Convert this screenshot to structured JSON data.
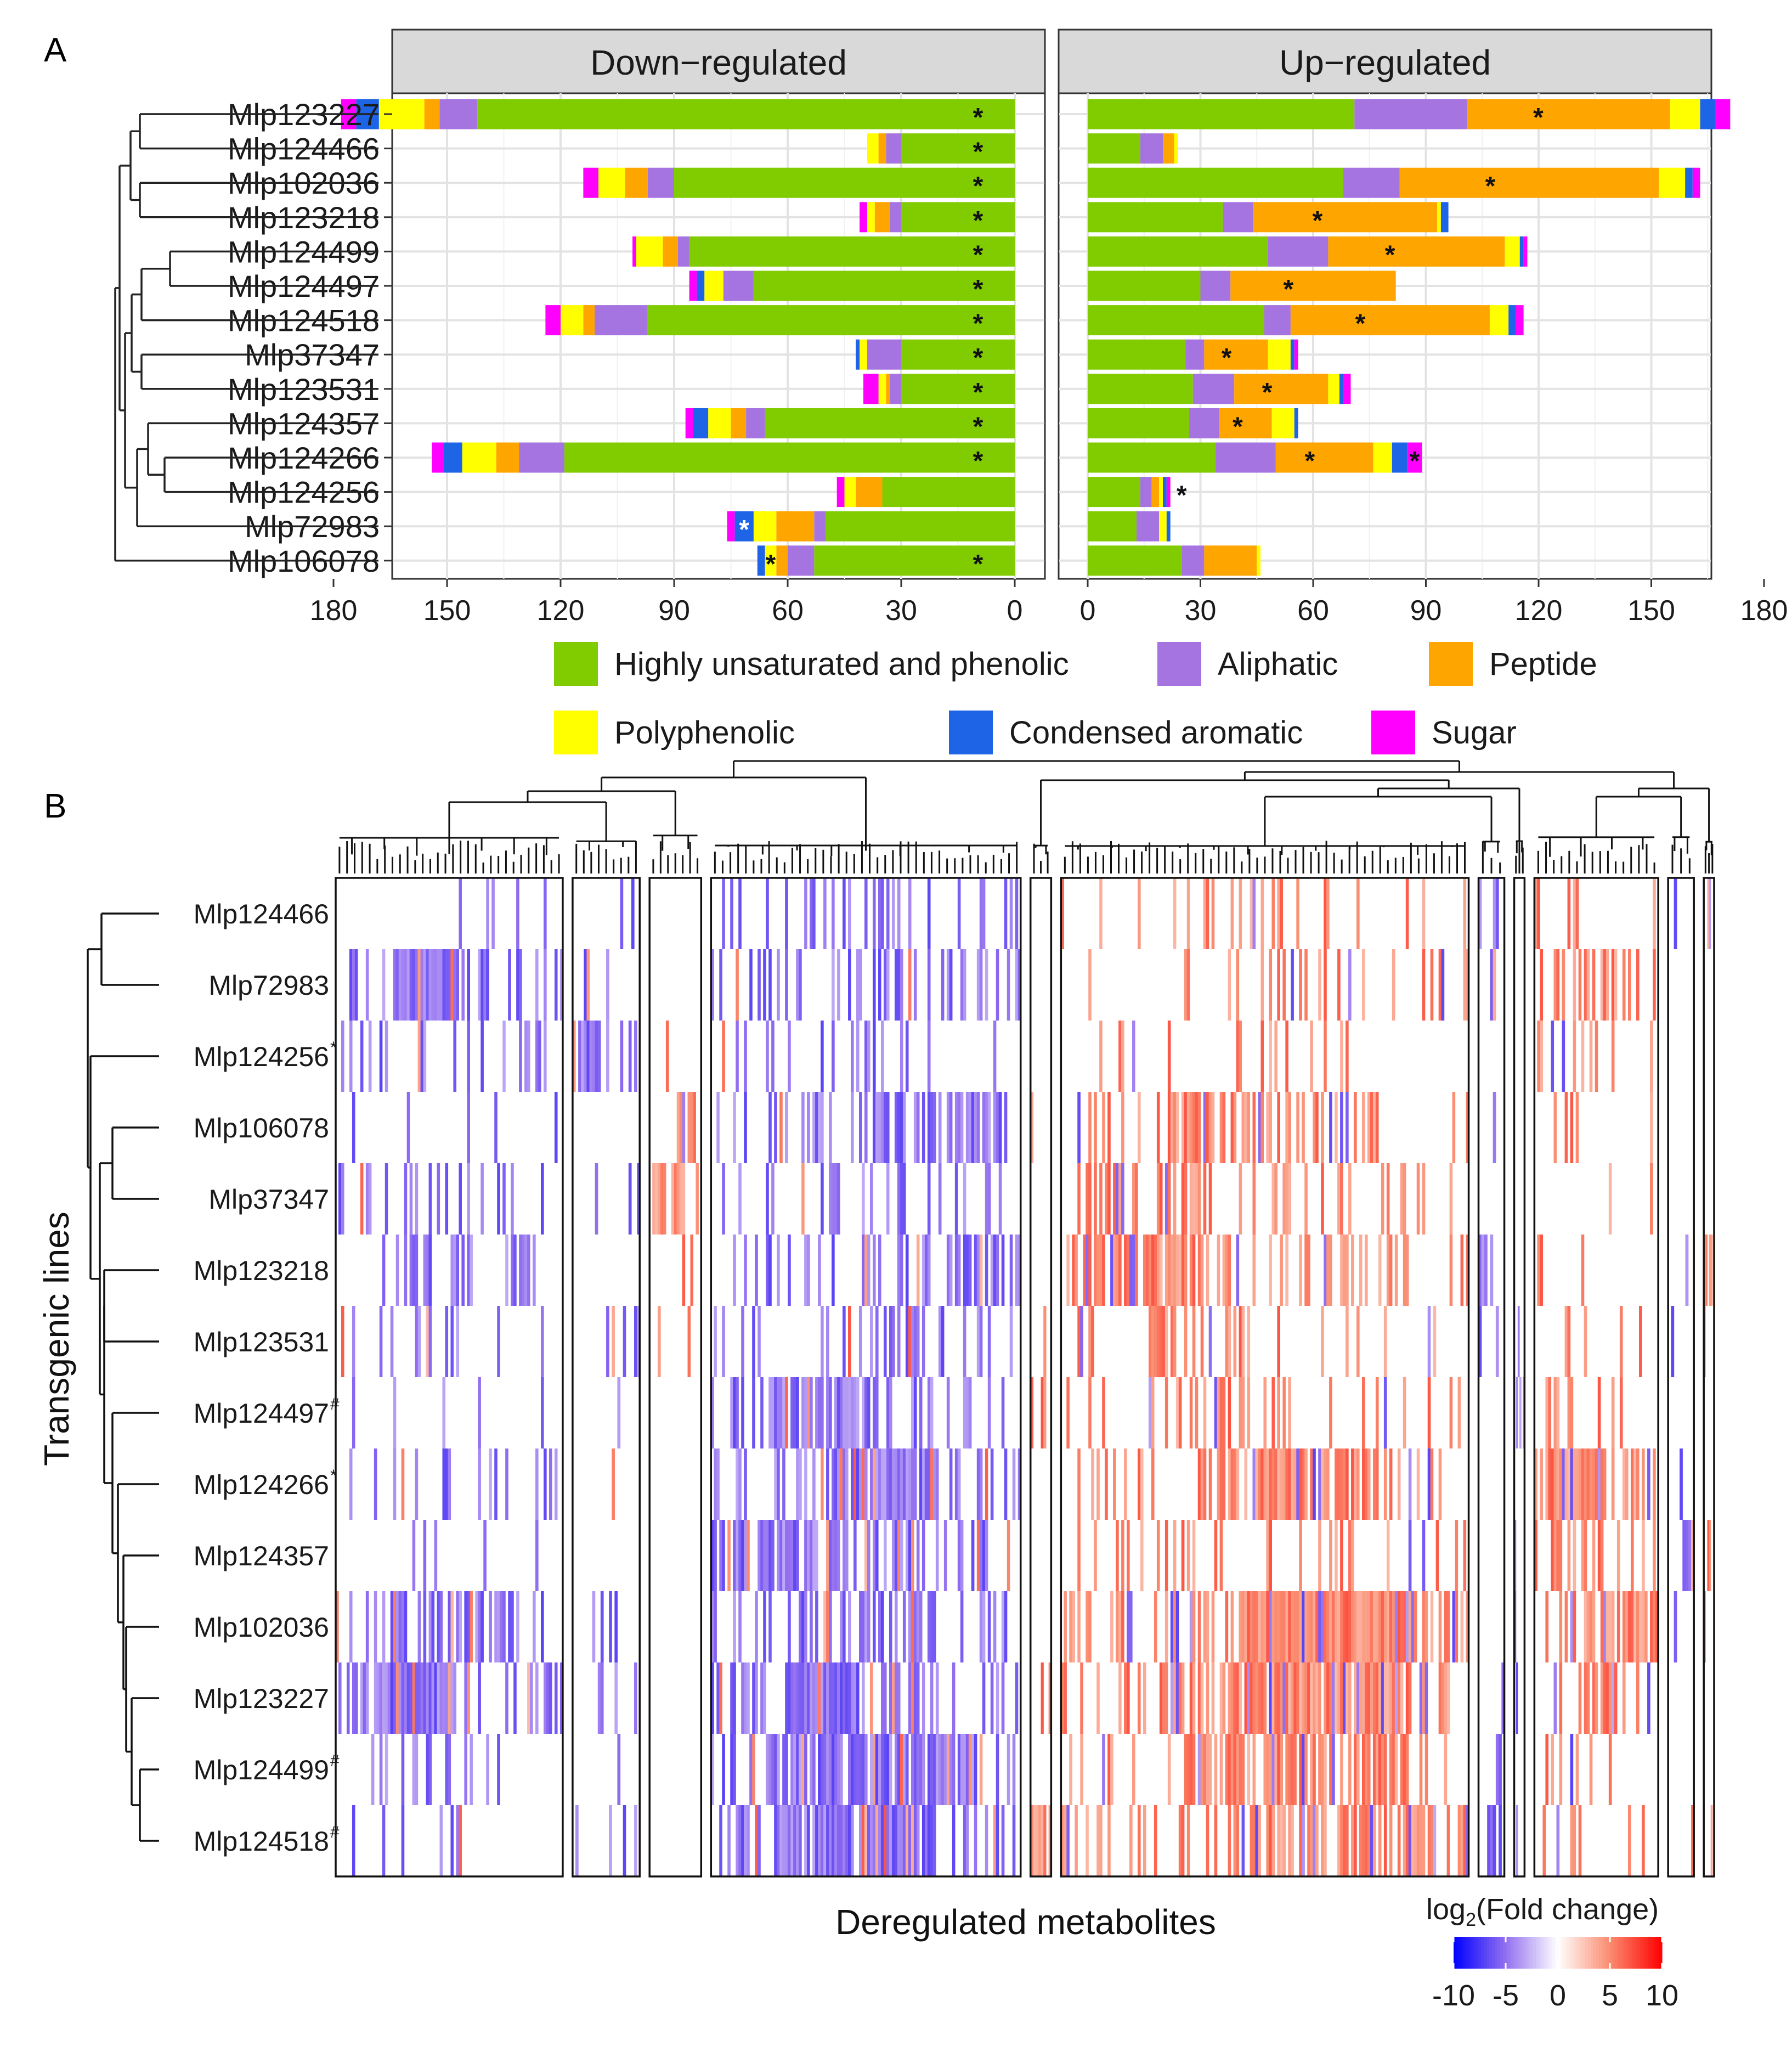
{
  "panel_a_label": "A",
  "panel_b_label": "B",
  "chart_data": [
    {
      "type": "bar",
      "orientation": "horizontal-stacked",
      "facets": [
        "Down−regulated",
        "Up−regulated"
      ],
      "categories": [
        "Mlp123227",
        "Mlp124466",
        "Mlp102036",
        "Mlp123218",
        "Mlp124499",
        "Mlp124497",
        "Mlp124518",
        "Mlp37347",
        "Mlp123531",
        "Mlp124357",
        "Mlp124266",
        "Mlp124256",
        "Mlp72983",
        "Mlp106078"
      ],
      "xticks_down": [
        "180",
        "150",
        "120",
        "90",
        "60",
        "30",
        "0"
      ],
      "xticks_up": [
        "0",
        "30",
        "60",
        "90",
        "120",
        "150",
        "180"
      ],
      "xlim": [
        0,
        180
      ],
      "grid": true,
      "legend_position": "bottom",
      "series": [
        {
          "name": "Highly unsaturated and phenolic",
          "color": "#80CC00",
          "down": [
            142,
            30,
            90,
            30,
            86,
            69,
            97,
            30,
            30,
            66,
            119,
            35,
            50,
            53
          ],
          "up": [
            71,
            14,
            68,
            36,
            48,
            30,
            47,
            26,
            28,
            27,
            34,
            14,
            13,
            25
          ]
        },
        {
          "name": "Aliphatic",
          "color": "#A574E0",
          "down": [
            10,
            4,
            7,
            3,
            3,
            8,
            14,
            9,
            3,
            5,
            12,
            0,
            3,
            7
          ],
          "up": [
            30,
            6,
            15,
            8,
            16,
            8,
            7,
            5,
            11,
            8,
            16,
            3,
            6,
            6
          ]
        },
        {
          "name": "Peptide",
          "color": "#FFA500",
          "down": [
            4,
            2,
            6,
            4,
            4,
            0,
            3,
            0,
            1,
            4,
            6,
            7,
            10,
            3
          ],
          "up": [
            54,
            3,
            69,
            49,
            47,
            44,
            53,
            17,
            25,
            14,
            26,
            2,
            0,
            14
          ]
        },
        {
          "name": "Polyphenolic",
          "color": "#FFFF00",
          "down": [
            12,
            3,
            7,
            2,
            7,
            5,
            6,
            2,
            2,
            6,
            9,
            3,
            6,
            3
          ],
          "up": [
            8,
            1,
            7,
            1,
            4,
            0,
            5,
            6,
            3,
            6,
            5,
            1,
            2,
            1
          ]
        },
        {
          "name": "Condensed aromatic",
          "color": "#1E64E6",
          "down": [
            6,
            0,
            0,
            0,
            0,
            2,
            0,
            1,
            0,
            4,
            5,
            0,
            5,
            2
          ],
          "up": [
            4,
            0,
            2,
            2,
            1,
            0,
            2,
            1,
            1,
            1,
            4,
            1,
            1,
            0
          ]
        },
        {
          "name": "Sugar",
          "color": "#FF00FF",
          "down": [
            4,
            0,
            4,
            2,
            1,
            2,
            4,
            0,
            4,
            2,
            3,
            2,
            2,
            0
          ],
          "up": [
            4,
            0,
            2,
            0,
            1,
            0,
            2,
            1,
            2,
            0,
            4,
            1,
            0,
            0
          ]
        }
      ],
      "significance_down": [
        {
          "row": 0,
          "series": 0
        },
        {
          "row": 1,
          "series": 0
        },
        {
          "row": 2,
          "series": 0
        },
        {
          "row": 3,
          "series": 0
        },
        {
          "row": 4,
          "series": 0
        },
        {
          "row": 5,
          "series": 0
        },
        {
          "row": 6,
          "series": 0
        },
        {
          "row": 7,
          "series": 0
        },
        {
          "row": 8,
          "series": 0
        },
        {
          "row": 9,
          "series": 0
        },
        {
          "row": 10,
          "series": 0
        },
        {
          "row": 12,
          "series": 4,
          "white": true
        },
        {
          "row": 13,
          "series": 0
        },
        {
          "row": 13,
          "series": 3
        }
      ],
      "significance_up": [
        {
          "row": 0,
          "series": 2
        },
        {
          "row": 2,
          "series": 2
        },
        {
          "row": 3,
          "series": 2
        },
        {
          "row": 4,
          "series": 2
        },
        {
          "row": 5,
          "series": 2
        },
        {
          "row": 6,
          "series": 2
        },
        {
          "row": 7,
          "series": 2
        },
        {
          "row": 8,
          "series": 2
        },
        {
          "row": 9,
          "series": 2
        },
        {
          "row": 10,
          "series": 2
        },
        {
          "row": 10,
          "series": 5
        },
        {
          "row": 11,
          "series": 5
        }
      ],
      "star": "*"
    },
    {
      "type": "heatmap",
      "xlabel": "Deregulated metabolites",
      "ylabel": "Transgenic lines",
      "rows": [
        {
          "name": "Mlp124466",
          "mark": ""
        },
        {
          "name": "Mlp72983",
          "mark": ""
        },
        {
          "name": "Mlp124256",
          "mark": "*"
        },
        {
          "name": "Mlp106078",
          "mark": ""
        },
        {
          "name": "Mlp37347",
          "mark": ""
        },
        {
          "name": "Mlp123218",
          "mark": ""
        },
        {
          "name": "Mlp123531",
          "mark": ""
        },
        {
          "name": "Mlp124497",
          "mark": "#"
        },
        {
          "name": "Mlp124266",
          "mark": "*"
        },
        {
          "name": "Mlp124357",
          "mark": ""
        },
        {
          "name": "Mlp102036",
          "mark": ""
        },
        {
          "name": "Mlp123227",
          "mark": ""
        },
        {
          "name": "Mlp124499",
          "mark": "#"
        },
        {
          "name": "Mlp124518",
          "mark": "#"
        }
      ],
      "n_clusters": 11,
      "cluster_widths": [
        88,
        26,
        20,
        120,
        8,
        158,
        10,
        4,
        48,
        10,
        4
      ],
      "color_scale": {
        "title_main": "log",
        "title_sub": "2",
        "title_rest": "(Fold change)",
        "min": -10,
        "max": 10,
        "ticks": [
          "-10",
          "-5",
          "0",
          "5",
          "10"
        ],
        "colors": [
          "#0000FF",
          "#9370F0",
          "#FFFFFF",
          "#FA8C70",
          "#FF0000"
        ]
      }
    }
  ]
}
